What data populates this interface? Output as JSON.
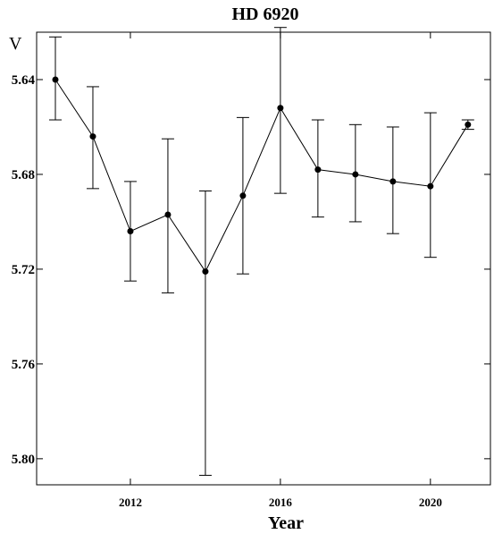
{
  "chart_data": {
    "type": "line",
    "title": "HD 6920",
    "xlabel": "Year",
    "ylabel": "V",
    "xlim": [
      2009.5,
      2021.6
    ],
    "ylim": [
      5.62,
      5.811
    ],
    "y_inverted": true,
    "x_ticks": [
      2012,
      2016,
      2020
    ],
    "x_tick_labels": [
      "2012",
      "2016",
      "2020"
    ],
    "y_ticks": [
      5.64,
      5.68,
      5.72,
      5.76,
      5.8
    ],
    "y_tick_labels": [
      "5.64",
      "5.68",
      "5.72",
      "5.76",
      "5.80"
    ],
    "grid": false,
    "series": [
      {
        "x": [
          2010,
          2011,
          2012,
          2013,
          2014,
          2015,
          2016,
          2017,
          2018,
          2019,
          2020,
          2021
        ],
        "y": [
          5.64,
          5.664,
          5.704,
          5.697,
          5.721,
          5.689,
          5.652,
          5.678,
          5.68,
          5.683,
          5.685,
          5.659
        ],
        "err_low": [
          5.622,
          5.643,
          5.683,
          5.665,
          5.687,
          5.656,
          5.618,
          5.657,
          5.659,
          5.66,
          5.654,
          5.657
        ],
        "err_high": [
          5.657,
          5.686,
          5.725,
          5.73,
          5.807,
          5.722,
          5.688,
          5.698,
          5.7,
          5.705,
          5.715,
          5.661
        ]
      }
    ]
  }
}
